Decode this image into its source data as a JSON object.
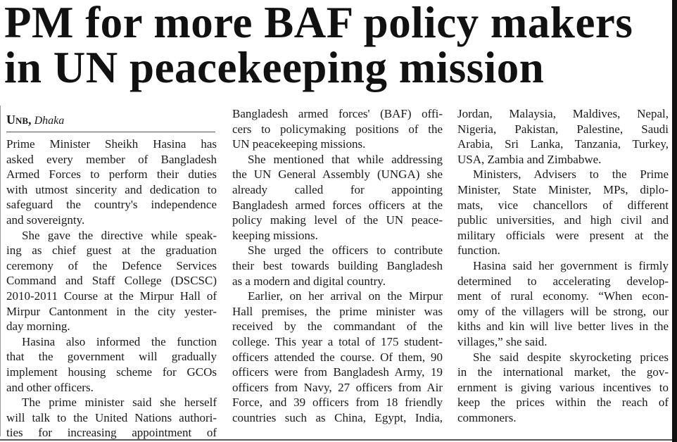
{
  "headline": {
    "line1": "PM for more BAF policy makers",
    "line2": "in UN peacekeeping mission"
  },
  "byline": {
    "agency": "Unb,",
    "city": "Dhaka"
  },
  "columns": [
    {
      "paragraphs": [
        {
          "indent": false,
          "continues": false,
          "lines": [
            "Prime Minister Sheikh Hasina has",
            "asked every member of Bangladesh",
            "Armed Forces to perform their duties",
            "with utmost sincerity and dedication to",
            "safeguard the country's independence",
            "and sovereignty."
          ]
        },
        {
          "indent": true,
          "continues": false,
          "lines": [
            "She gave the directive while speak-",
            "ing as chief guest at the graduation",
            "ceremony of the Defence Services",
            "Command and Staff College (DSCSC)",
            "2010-2011 Course at the Mirpur Hall of",
            "Mirpur Cantonment in the city yester-",
            "day morning."
          ]
        },
        {
          "indent": true,
          "continues": false,
          "lines": [
            "Hasina also informed the function",
            "that the government will gradually",
            "implement housing scheme for GCOs",
            "and other officers."
          ]
        },
        {
          "indent": true,
          "continues": true,
          "lines": [
            "The prime minister said she herself",
            "will talk to the United Nations authori-",
            "ties for increasing appointment of"
          ]
        }
      ]
    },
    {
      "paragraphs": [
        {
          "indent": false,
          "continues": false,
          "lines": [
            "Bangladesh armed forces' (BAF) offi-",
            "cers to policymaking positions of the",
            "UN peacekeeping missions."
          ]
        },
        {
          "indent": true,
          "continues": false,
          "lines": [
            "She mentioned that while addressing",
            "the UN General Assembly (UNGA) she",
            "already called for appointing",
            "Bangladesh armed forces officers at the",
            "policy making level of the UN peace-",
            "keeping missions."
          ]
        },
        {
          "indent": true,
          "continues": false,
          "lines": [
            "She urged the officers to contribute",
            "their best towards building Bangladesh",
            "as a modern and digital country."
          ]
        },
        {
          "indent": true,
          "continues": true,
          "lines": [
            "Earlier, on her arrival on the Mirpur",
            "Hall premises, the prime minister was",
            "received by the commandant of the",
            "college. This year a total of 175 student-",
            "officers attended the course. Of them, 90",
            "officers were from Bangladesh Army, 19",
            "officers from Navy, 27 officers from Air",
            "Force, and 39 officers from 18 friendly",
            "countries such as China, Egypt, India,"
          ]
        }
      ]
    },
    {
      "paragraphs": [
        {
          "indent": false,
          "continues": false,
          "lines": [
            "Jordan, Malaysia, Maldives, Nepal,",
            "Nigeria, Pakistan, Palestine, Saudi",
            "Arabia, Sri Lanka, Tanzania, Turkey,",
            "USA, Zambia and Zimbabwe."
          ]
        },
        {
          "indent": true,
          "continues": false,
          "lines": [
            "Ministers, Advisers to the Prime",
            "Minister, State Minister, MPs, diplo-",
            "mats, vice chancellors of different",
            "public universities, and high civil and",
            "military officials were present at the",
            "function."
          ]
        },
        {
          "indent": true,
          "continues": false,
          "lines": [
            "Hasina said her government is firmly",
            "determined to accelerating develop-",
            "ment of rural economy. “When econ-",
            "omy of the villagers will be strong, our",
            "kiths and kin will live better lives in the",
            "villages,” she said."
          ]
        },
        {
          "indent": true,
          "continues": false,
          "lines": [
            "She said despite skyrocketing prices",
            "in the international market, the gov-",
            "ernment is giving various incentives to",
            "keep the prices within the reach of",
            "commoners."
          ]
        }
      ]
    }
  ]
}
